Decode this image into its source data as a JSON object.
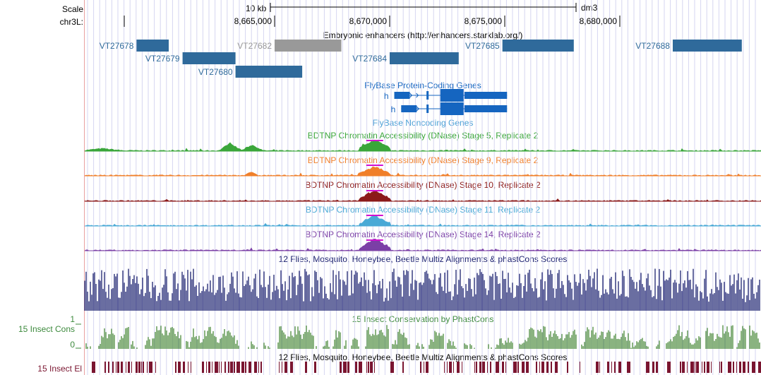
{
  "scale": {
    "label": "Scale",
    "size_label": "10 kb",
    "assembly": "dm3"
  },
  "chrom": {
    "label": "chr3L:",
    "ticks": [
      {
        "pos": 8665000,
        "label": "8,665,000"
      },
      {
        "pos": 8670000,
        "label": "8,670,000"
      },
      {
        "pos": 8675000,
        "label": "8,675,000"
      },
      {
        "pos": 8680000,
        "label": "8,680,000"
      }
    ]
  },
  "enhancers": {
    "title": "Embryonic enhancers (http://enhancers.starklab.org/)",
    "color": "#2f6a9b",
    "dim_color": "#999999",
    "items": [
      {
        "name": "VT27678",
        "start": 8659000,
        "end": 8660400,
        "row": 0,
        "label_side": "left",
        "dim": false
      },
      {
        "name": "VT27679",
        "start": 8661000,
        "end": 8663300,
        "row": 1,
        "label_side": "left",
        "dim": false
      },
      {
        "name": "VT27680",
        "start": 8663300,
        "end": 8666200,
        "row": 2,
        "label_side": "left",
        "dim": false
      },
      {
        "name": "VT27682",
        "start": 8665000,
        "end": 8667900,
        "row": 0,
        "label_side": "left",
        "dim": true
      },
      {
        "name": "VT27684",
        "start": 8670000,
        "end": 8673000,
        "row": 1,
        "label_side": "left",
        "dim": false
      },
      {
        "name": "VT27685",
        "start": 8674900,
        "end": 8678000,
        "row": 0,
        "label_side": "left",
        "dim": false
      },
      {
        "name": "VT27688",
        "start": 8682300,
        "end": 8685300,
        "row": 0,
        "label_side": "left",
        "dim": false
      }
    ]
  },
  "genes": {
    "title": "FlyBase Protein-Coding Genes",
    "color": "#1565c0",
    "transcripts": [
      {
        "name": "h",
        "start": 8670200,
        "end": 8675100
      },
      {
        "name": "h",
        "start": 8670500,
        "end": 8675100
      }
    ]
  },
  "noncoding": {
    "title": "FlyBase Noncoding Genes",
    "color": "#4a9fd6"
  },
  "dnase": [
    {
      "title": "BDTNP Chromatin Accessibility (DNase) Stage 5, Replicate 2",
      "color": "#3aa63a"
    },
    {
      "title": "BDTNP Chromatin Accessibility (DNase) Stage 9, Replicate 2",
      "color": "#f07f2a"
    },
    {
      "title": "BDTNP Chromatin Accessibility (DNase) Stage 10, Replicate 2",
      "color": "#8b1a1a"
    },
    {
      "title": "BDTNP Chromatin Accessibility (DNase) Stage 11, Replicate 2",
      "color": "#49a9d6"
    },
    {
      "title": "BDTNP Chromatin Accessibility (DNase) Stage 14, Replicate 2",
      "color": "#7b3fa6"
    }
  ],
  "peak_highlight_color": "#d10fd1",
  "multiz": {
    "title": "12 Flies, Mosquito, Honeybee, Beetle Multiz Alignments & phastCons Scores",
    "color": "#1a1f6e"
  },
  "phastcons": {
    "title": "15 Insect Conservation by PhastCons",
    "side_label": "15 Insect Cons",
    "y_max": "1",
    "y_min": "0",
    "color": "#4a8a3c",
    "title_color": "#3d8a3d"
  },
  "elements": {
    "title": "12 Flies, Mosquito, Honeybee, Beetle Multiz Alignments & phastCons Scores",
    "side_label": "15 Insect El",
    "color": "#7a1530"
  }
}
